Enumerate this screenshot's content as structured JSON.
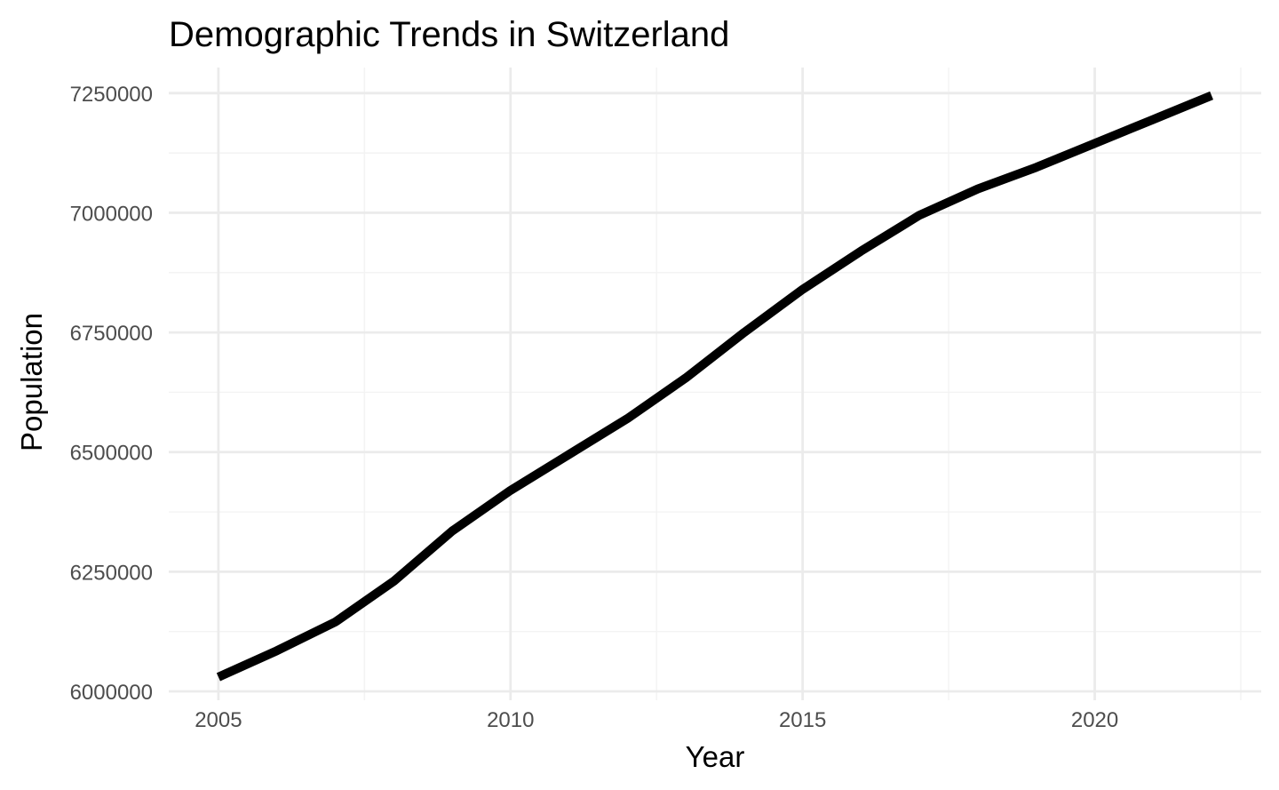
{
  "chart_data": {
    "type": "line",
    "title": "Demographic Trends in Switzerland",
    "xlabel": "Year",
    "ylabel": "Population",
    "x": [
      2005,
      2006,
      2007,
      2008,
      2009,
      2010,
      2011,
      2012,
      2013,
      2014,
      2015,
      2016,
      2017,
      2018,
      2019,
      2020,
      2021,
      2022
    ],
    "series": [
      {
        "values": [
          6030000,
          6085000,
          6145000,
          6230000,
          6335000,
          6420000,
          6495000,
          6570000,
          6655000,
          6750000,
          6840000,
          6920000,
          6995000,
          7050000,
          7095000,
          7145000,
          7195000,
          7245000
        ],
        "color": "#000000"
      }
    ],
    "xlim": [
      2004.15,
      2022.85
    ],
    "ylim": [
      5981500,
      7303500
    ],
    "xticks": [
      2005,
      2010,
      2015,
      2020
    ],
    "xtick_labels": [
      "2005",
      "2010",
      "2015",
      "2020"
    ],
    "yticks": [
      6000000,
      6250000,
      6500000,
      6750000,
      7000000,
      7250000
    ],
    "ytick_labels": [
      "6000000",
      "6250000",
      "6500000",
      "6750000",
      "7000000",
      "7250000"
    ],
    "grid": true,
    "legend": "none"
  }
}
